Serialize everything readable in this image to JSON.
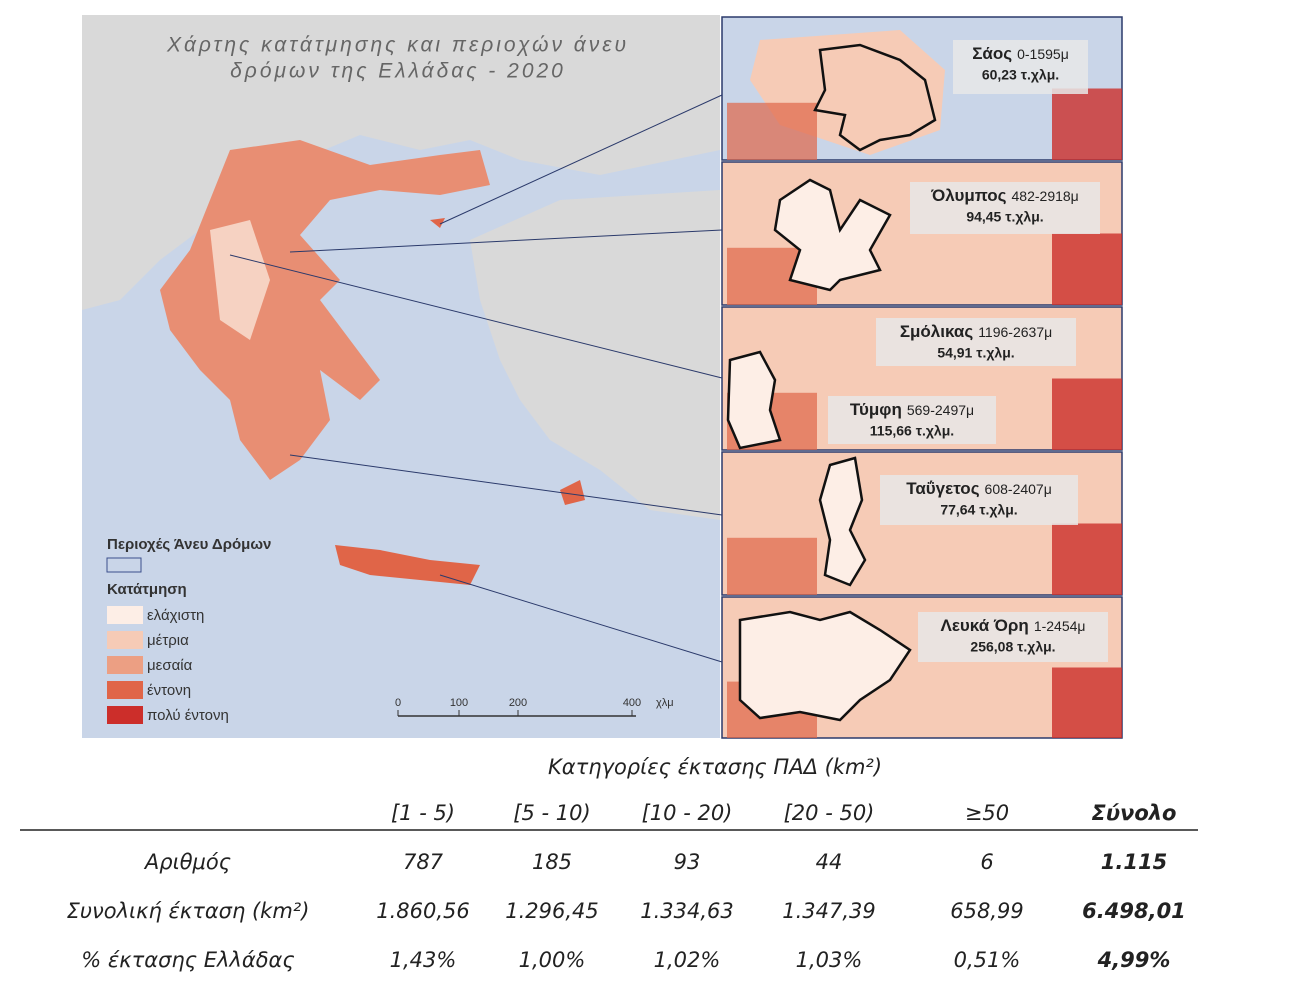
{
  "map": {
    "title_lines": [
      "Χάρτης κατάτμησης και περιοχών άνευ",
      "δρόμων της Ελλάδας - 2020"
    ],
    "legend": {
      "roadless_title": "Περιοχές Άνευ Δρόμων",
      "fragmentation_title": "Κατάτμηση",
      "classes": [
        {
          "label": "ελάχιστη",
          "color": "#fdeee6"
        },
        {
          "label": "μέτρια",
          "color": "#f6cbb6"
        },
        {
          "label": "μεσαία",
          "color": "#ec9f83"
        },
        {
          "label": "έντονη",
          "color": "#e06548"
        },
        {
          "label": "πολύ έντονη",
          "color": "#cc2e2a"
        }
      ]
    },
    "scale": {
      "labels": [
        "0",
        "100",
        "200",
        "400"
      ],
      "unit": "χλμ"
    },
    "insets": [
      {
        "areas": [
          {
            "name": "Σάος",
            "range": "0-1595μ",
            "area": "60,23 τ.χλμ."
          }
        ]
      },
      {
        "areas": [
          {
            "name": "Όλυμπος",
            "range": "482-2918μ",
            "area": "94,45 τ.χλμ."
          }
        ]
      },
      {
        "areas": [
          {
            "name": "Σμόλικας",
            "range": "1196-2637μ",
            "area": "54,91 τ.χλμ."
          },
          {
            "name": "Τύμφη",
            "range": "569-2497μ",
            "area": "115,66 τ.χλμ."
          }
        ]
      },
      {
        "areas": [
          {
            "name": "Ταΰγετος",
            "range": "608-2407μ",
            "area": "77,64 τ.χλμ."
          }
        ]
      },
      {
        "areas": [
          {
            "name": "Λευκά Όρη",
            "range": "1-2454μ",
            "area": "256,08 τ.χλμ."
          }
        ]
      }
    ]
  },
  "table": {
    "title": "Κατηγορίες έκτασης ΠΑΔ (km²)",
    "columns": [
      "[1 - 5)",
      "[5 - 10)",
      "[10 - 20)",
      "[20 - 50)",
      "≥50",
      "Σύνολο"
    ],
    "rows": [
      {
        "label": "Αριθμός",
        "cells": [
          "787",
          "185",
          "93",
          "44",
          "6",
          "1.115"
        ]
      },
      {
        "label": "Συνολική έκταση (km²)",
        "cells": [
          "1.860,56",
          "1.296,45",
          "1.334,63",
          "1.347,39",
          "658,99",
          "6.498,01"
        ]
      },
      {
        "label": "% έκτασης Ελλάδας",
        "cells": [
          "1,43%",
          "1,00%",
          "1,02%",
          "1,03%",
          "0,51%",
          "4,99%"
        ]
      }
    ]
  }
}
